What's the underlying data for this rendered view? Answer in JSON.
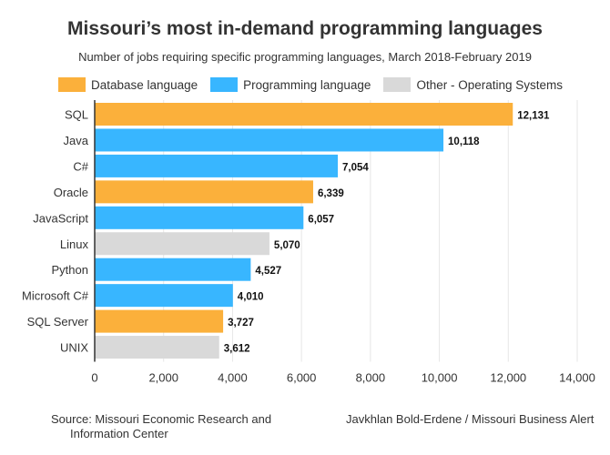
{
  "title": "Missouri’s most in-demand programming languages",
  "subtitle": "Number of jobs requiring specific programming languages, March 2018-February 2019",
  "legend": [
    {
      "label": "Database language",
      "color": "#FBB03B"
    },
    {
      "label": "Programming language",
      "color": "#38B6FF"
    },
    {
      "label": "Other - Operating Systems",
      "color": "#D9D9D9"
    }
  ],
  "footer": {
    "source": "Source: Missouri Economic Research and",
    "source_line2": "Information Center",
    "credit": "Javkhlan Bold-Erdene / Missouri Business Alert"
  },
  "chart_data": {
    "type": "bar",
    "orientation": "horizontal",
    "title": "Missouri’s most in-demand programming languages",
    "subtitle": "Number of jobs requiring specific programming languages, March 2018-February 2019",
    "categories": [
      "SQL",
      "Java",
      "C#",
      "Oracle",
      "JavaScript",
      "Linux",
      "Python",
      "Microsoft C#",
      "SQL Server",
      "UNIX"
    ],
    "values": [
      12131,
      10118,
      7054,
      6339,
      6057,
      5070,
      4527,
      4010,
      3727,
      3612
    ],
    "value_labels": [
      "12,131",
      "10,118",
      "7,054",
      "6,339",
      "6,057",
      "5,070",
      "4,527",
      "4,010",
      "3,727",
      "3,612"
    ],
    "groups": [
      "Database language",
      "Programming language",
      "Programming language",
      "Database language",
      "Programming language",
      "Other - Operating Systems",
      "Programming language",
      "Programming language",
      "Database language",
      "Other - Operating Systems"
    ],
    "xlim": [
      0,
      14000
    ],
    "xticks": [
      0,
      2000,
      4000,
      6000,
      8000,
      10000,
      12000,
      14000
    ],
    "xtick_labels": [
      "0",
      "2,000",
      "4,000",
      "6,000",
      "8,000",
      "10,000",
      "12,000",
      "14,000"
    ],
    "grid": true,
    "legend_position": "top"
  }
}
